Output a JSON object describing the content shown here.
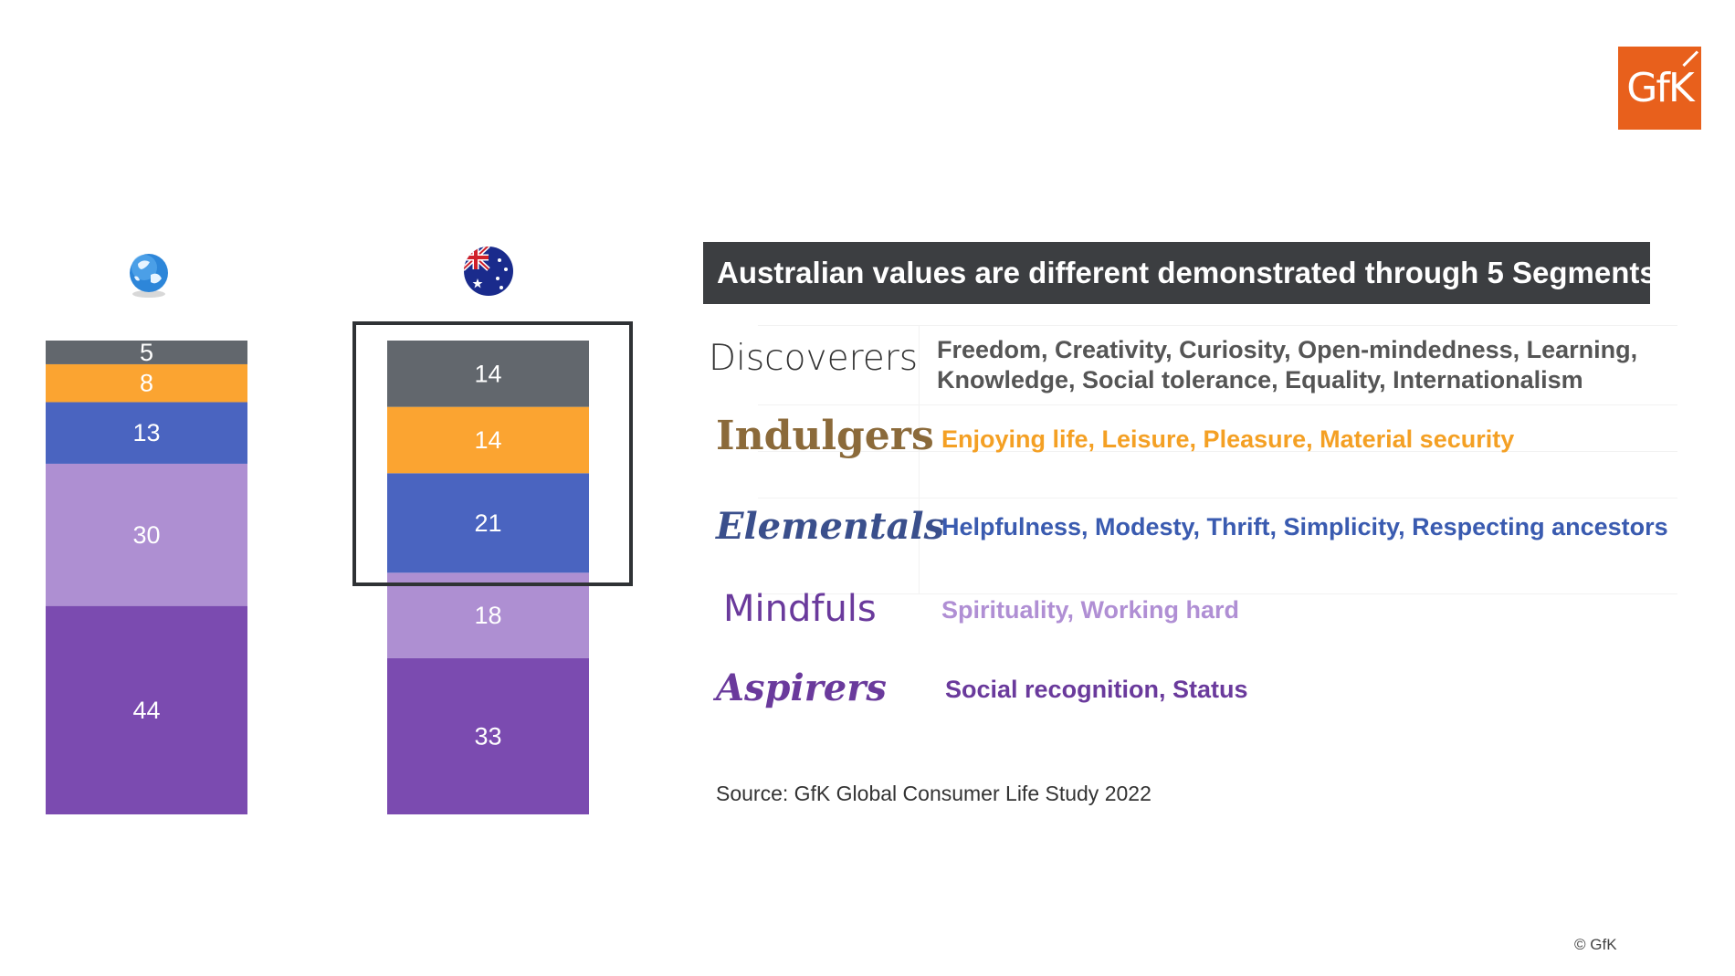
{
  "brand": {
    "logo_text": "GfK",
    "accent": "#e8601c"
  },
  "chart_data": {
    "type": "bar",
    "stacked": true,
    "categories": [
      "World",
      "Australia"
    ],
    "category_icons": [
      "globe-icon",
      "australian-flag-icon"
    ],
    "series": [
      {
        "name": "Aspirers",
        "color": "#7b4bb0",
        "values": [
          44,
          33
        ]
      },
      {
        "name": "Mindfuls",
        "color": "#ae8fd2",
        "values": [
          30,
          18
        ]
      },
      {
        "name": "Elementals",
        "color": "#4a64c0",
        "values": [
          13,
          21
        ]
      },
      {
        "name": "Indulgers",
        "color": "#fba431",
        "values": [
          8,
          14
        ]
      },
      {
        "name": "Discoverers",
        "color": "#62676d",
        "values": [
          5,
          14
        ]
      }
    ],
    "highlighted_category": "Australia",
    "highlighted_series": [
      "Discoverers",
      "Indulgers",
      "Elementals"
    ]
  },
  "panel": {
    "title": "Australian values are different demonstrated through 5 Segments",
    "segments": [
      {
        "name": "Discoverers",
        "color": "#333333",
        "desc_color": "#555555",
        "description": "Freedom, Creativity, Curiosity, Open-mindedness, Learning, Knowledge, Social tolerance, Equality, Internationalism"
      },
      {
        "name": "Indulgers",
        "color": "#8b6a3a",
        "desc_color": "#f4a024",
        "description": "Enjoying life, Leisure, Pleasure, Material security"
      },
      {
        "name": "Elementals",
        "color": "#3a4f8c",
        "desc_color": "#3a5bb0",
        "description": "Helpfulness, Modesty, Thrift, Simplicity, Respecting ancestors"
      },
      {
        "name": "Mindfuls",
        "color": "#6a3a9c",
        "desc_color": "#b08fd4",
        "description": "Spirituality, Working hard"
      },
      {
        "name": "Aspirers",
        "color": "#6a3a9c",
        "desc_color": "#6a3a9c",
        "description": "Social recognition, Status"
      }
    ]
  },
  "source": "Source: GfK Global Consumer Life Study 2022",
  "copyright": "© GfK"
}
